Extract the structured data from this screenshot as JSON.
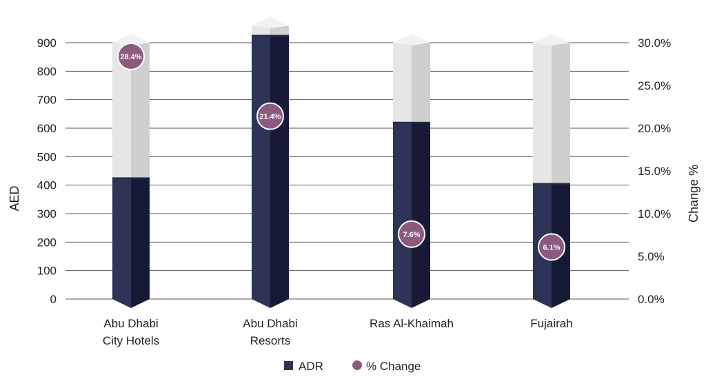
{
  "chart_data": {
    "type": "bar",
    "categories": [
      [
        "Abu Dhabi",
        "City Hotels"
      ],
      [
        "Abu Dhabi",
        "Resorts"
      ],
      [
        "Ras Al-Khaimah"
      ],
      [
        "Fujairah"
      ]
    ],
    "series": [
      {
        "name": "ADR",
        "axis": "left",
        "values": [
          425,
          925,
          620,
          405
        ],
        "color": "#2e3358"
      },
      {
        "name": "% Change",
        "axis": "right",
        "marker": "circle",
        "values": [
          28.4,
          21.4,
          7.6,
          6.1
        ],
        "labels": [
          "28.4%",
          "21.4%",
          "7.6%",
          "6.1%"
        ],
        "color": "#8c5a7f"
      }
    ],
    "capacity_values": [
      900,
      960,
      900,
      900
    ],
    "ylabel": "AED",
    "ylabel_right": "Change %",
    "ylim": [
      0,
      900
    ],
    "ylim_right": [
      0,
      30
    ],
    "yticks": [
      "0",
      "100",
      "200",
      "300",
      "400",
      "500",
      "600",
      "700",
      "800",
      "900"
    ],
    "yticks_right": [
      "0.0%",
      "5.0%",
      "10.0%",
      "15.0%",
      "20.0%",
      "25.0%",
      "30.0%"
    ],
    "grid": true,
    "legend_position": "bottom-center",
    "colors": {
      "bar_front": "#2e3358",
      "bar_side": "#161a36",
      "bar_top": "#262a4c",
      "capacity_front": "#e6e6e6",
      "capacity_side": "#cfcfcf",
      "capacity_top": "#f1f1f1",
      "marker": "#8c5a7f",
      "grid": "#555555"
    }
  }
}
